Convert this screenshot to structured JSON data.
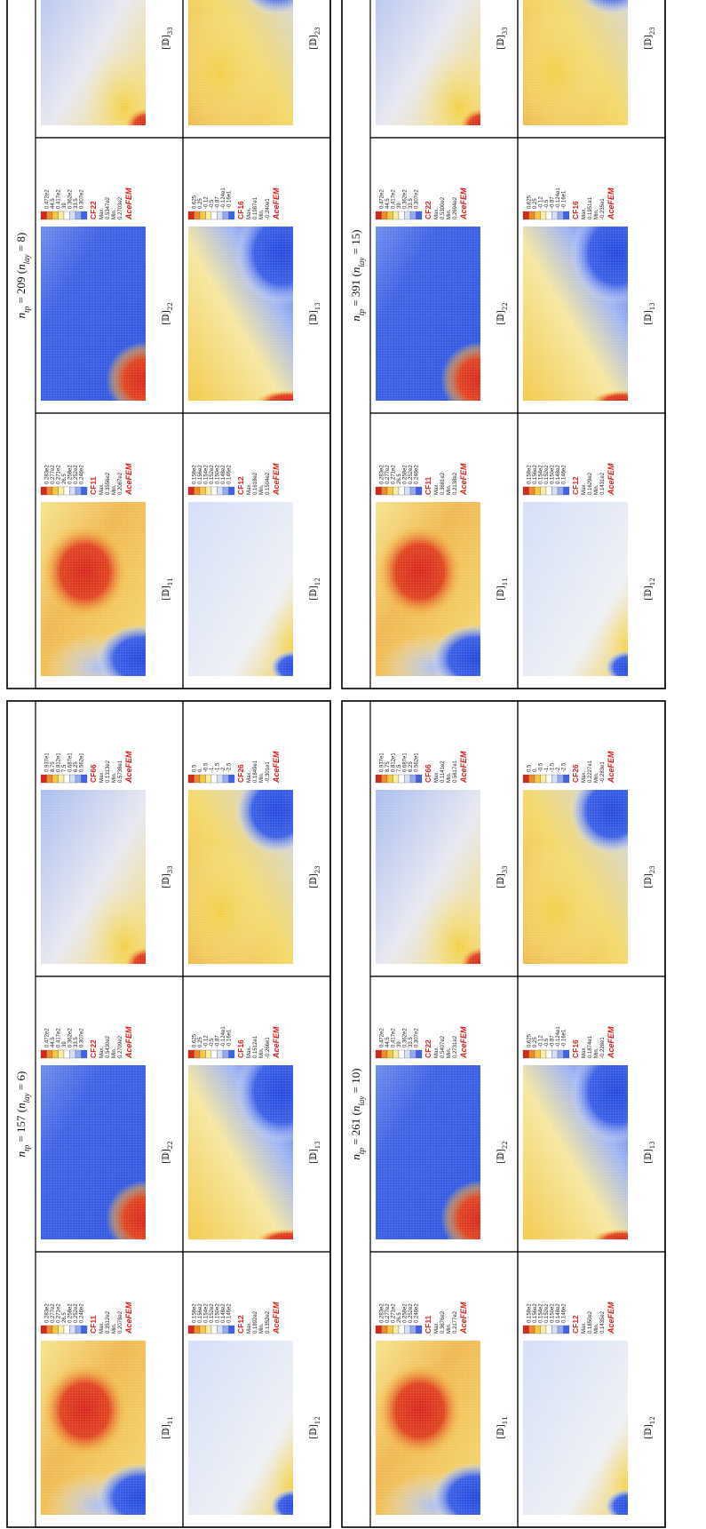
{
  "max_label": "Max.",
  "min_label": "Min.",
  "brand": "AceFEM",
  "panels": [
    {
      "title": [
        "n",
        "tp",
        " = 157 (",
        "n",
        "lay",
        " = 6)"
      ],
      "cells": [
        {
          "label": [
            "[𝔻]",
            "11"
          ],
          "name": "CF11",
          "levels": [
            "0.283e2",
            "0.277e2",
            "0.271e2",
            "26.5",
            "0.258e2",
            "0.252e2",
            "0.246e2"
          ],
          "max": "0.3512e2",
          "min": "0.2078e2"
        },
        {
          "label": [
            "[𝔻]",
            "22"
          ],
          "name": "CF22",
          "levels": [
            "0.472e2",
            "44.5",
            "0.417e2",
            "39",
            "0.362e2",
            "33.5",
            "0.307e2"
          ],
          "max": "0.5430e2",
          "min": "0.2709e2"
        },
        {
          "label": [
            "[𝔻]",
            "33"
          ],
          "name": "CF66",
          "levels": [
            "0.937e1",
            "8.75",
            "0.812e1",
            "7.5",
            "0.687e1",
            "6.25",
            "0.562e1"
          ],
          "max": "0.1313e2",
          "min": "0.5738e1"
        },
        {
          "label": [
            "[𝔻]",
            "12"
          ],
          "name": "CF12",
          "levels": [
            "0.158e2",
            "0.156e2",
            "0.154e2",
            "0.152e2",
            "0.150e2",
            "0.148e2",
            "0.146e2"
          ],
          "max": "0.1892e2",
          "min": "0.1352e2"
        },
        {
          "label": [
            "[𝔻]",
            "13"
          ],
          "name": "CF16",
          "levels": [
            "0.625",
            "0.25",
            "-0.12",
            "-0.5",
            "-0.87",
            "-0.124e1",
            "-0.16e1"
          ],
          "max": "0.1512e1",
          "min": "-0.266e1"
        },
        {
          "label": [
            "[𝔻]",
            "23"
          ],
          "name": "CF26",
          "levels": [
            "0.5",
            "0.",
            "-0.5",
            "-1.",
            "-1.5",
            "-2.",
            "-2.5"
          ],
          "max": "0.1849e1",
          "min": "-0.301e1"
        }
      ]
    },
    {
      "title": [
        "n",
        "tp",
        " = 209 (",
        "n",
        "lay",
        " = 8)"
      ],
      "cells": [
        {
          "label": [
            "[𝔻]",
            "11"
          ],
          "name": "CF11",
          "levels": [
            "0.283e2",
            "0.277e2",
            "0.271e2",
            "26.5",
            "0.258e2",
            "0.252e2",
            "0.246e2"
          ],
          "max": "0.3556e2",
          "min": "0.2087e2"
        },
        {
          "label": [
            "[𝔻]",
            "22"
          ],
          "name": "CF22",
          "levels": [
            "0.472e2",
            "44.5",
            "0.417e2",
            "39",
            "0.362e2",
            "33.5",
            "0.307e2"
          ],
          "max": "0.5347e2",
          "min": "0.2703e2"
        },
        {
          "label": [
            "[𝔻]",
            "33"
          ],
          "name": "CF66",
          "levels": [
            "0.937e1",
            "8.75",
            "0.812e1",
            "7.5",
            "0.687e1",
            "6.25",
            "0.562e1"
          ],
          "max": "0.1123e2",
          "min": "0.5672e1"
        },
        {
          "label": [
            "[𝔻]",
            "12"
          ],
          "name": "CF12",
          "levels": [
            "0.158e2",
            "0.156e2",
            "0.154e2",
            "0.152e2",
            "0.150e2",
            "0.148e2",
            "0.146e2"
          ],
          "max": "0.1618e2",
          "min": "0.1504e2"
        },
        {
          "label": [
            "[𝔻]",
            "13"
          ],
          "name": "CF16",
          "levels": [
            "0.625",
            "0.25",
            "-0.12",
            "-0.5",
            "-0.87",
            "-0.124e1",
            "-0.16e1"
          ],
          "max": "0.1987e1",
          "min": "-0.240e1"
        },
        {
          "label": [
            "[𝔻]",
            "23"
          ],
          "name": "CF26",
          "levels": [
            "0.5",
            "0.",
            "-0.5",
            "-1.",
            "-1.5",
            "-2.",
            "-2.5"
          ],
          "max": "0.2338e1",
          "min": "-0.282e1"
        }
      ]
    },
    {
      "title": [
        "n",
        "tp",
        " = 261 (",
        "n",
        "lay",
        " = 10)"
      ],
      "cells": [
        {
          "label": [
            "[𝔻]",
            "11"
          ],
          "name": "CF11",
          "levels": [
            "0.283e2",
            "0.277e2",
            "0.271e2",
            "26.5",
            "0.258e2",
            "0.252e2",
            "0.246e2"
          ],
          "max": "0.3676e2",
          "min": "0.2177e2"
        },
        {
          "label": [
            "[𝔻]",
            "22"
          ],
          "name": "CF22",
          "levels": [
            "0.472e2",
            "44.5",
            "0.417e2",
            "39",
            "0.362e2",
            "33.5",
            "0.307e2"
          ],
          "max": "0.5407e2",
          "min": "0.2731e2"
        },
        {
          "label": [
            "[𝔻]",
            "33"
          ],
          "name": "CF66",
          "levels": [
            "0.937e1",
            "8.75",
            "0.812e1",
            "7.5",
            "0.687e1",
            "6.25",
            "0.562e1"
          ],
          "max": "0.1141e2",
          "min": "0.5617e1"
        },
        {
          "label": [
            "[𝔻]",
            "12"
          ],
          "name": "CF12",
          "levels": [
            "0.158e2",
            "0.156e2",
            "0.154e2",
            "0.152e2",
            "0.150e2",
            "0.148e2",
            "0.146e2"
          ],
          "max": "0.1850e2",
          "min": "0.1435e2"
        },
        {
          "label": [
            "[𝔻]",
            "13"
          ],
          "name": "CF16",
          "levels": [
            "0.625",
            "0.25",
            "-0.12",
            "-0.5",
            "-0.87",
            "-0.124e1",
            "-0.16e1"
          ],
          "max": "0.1874e1",
          "min": "-0.228e1"
        },
        {
          "label": [
            "[𝔻]",
            "23"
          ],
          "name": "CF26",
          "levels": [
            "0.5",
            "0.",
            "-0.5",
            "-1.",
            "-1.5",
            "-2.",
            "-2.5"
          ],
          "max": "0.2227e1",
          "min": "-0.283e1"
        }
      ]
    },
    {
      "title": [
        "n",
        "tp",
        " = 391 (",
        "n",
        "lay",
        " = 15)"
      ],
      "cells": [
        {
          "label": [
            "[𝔻]",
            "11"
          ],
          "name": "CF11",
          "levels": [
            "0.283e2",
            "0.277e2",
            "0.271e2",
            "26.5",
            "0.258e2",
            "0.252e2",
            "0.246e2"
          ],
          "max": "0.3681e2",
          "min": "0.2138e2"
        },
        {
          "label": [
            "[𝔻]",
            "22"
          ],
          "name": "CF22",
          "levels": [
            "0.472e2",
            "44.5",
            "0.417e2",
            "39",
            "0.362e2",
            "33.5",
            "0.307e2"
          ],
          "max": "0.5300e2",
          "min": "0.2694e2"
        },
        {
          "label": [
            "[𝔻]",
            "33"
          ],
          "name": "CF66",
          "levels": [
            "0.937e1",
            "8.75",
            "0.812e1",
            "7.5",
            "0.687e1",
            "6.25",
            "0.562e1"
          ],
          "max": "0.1148e2",
          "min": "0.5667e1"
        },
        {
          "label": [
            "[𝔻]",
            "12"
          ],
          "name": "CF12",
          "levels": [
            "0.158e2",
            "0.156e2",
            "0.154e2",
            "0.152e2",
            "0.150e2",
            "0.148e2",
            "0.146e2"
          ],
          "max": "0.1629e2",
          "min": "0.1431e2"
        },
        {
          "label": [
            "[𝔻]",
            "13"
          ],
          "name": "CF16",
          "levels": [
            "0.625",
            "0.25",
            "-0.12",
            "-0.5",
            "-0.87",
            "-0.124e1",
            "-0.16e1"
          ],
          "max": "0.1951e1",
          "min": "-0.235e1"
        },
        {
          "label": [
            "[𝔻]",
            "23"
          ],
          "name": "CF26",
          "levels": [
            "0.5",
            "0.",
            "-0.5",
            "-1.",
            "-1.5",
            "-2.",
            "-2.5"
          ],
          "max": "0.2297e1",
          "min": "-0.280e1"
        }
      ]
    }
  ]
}
